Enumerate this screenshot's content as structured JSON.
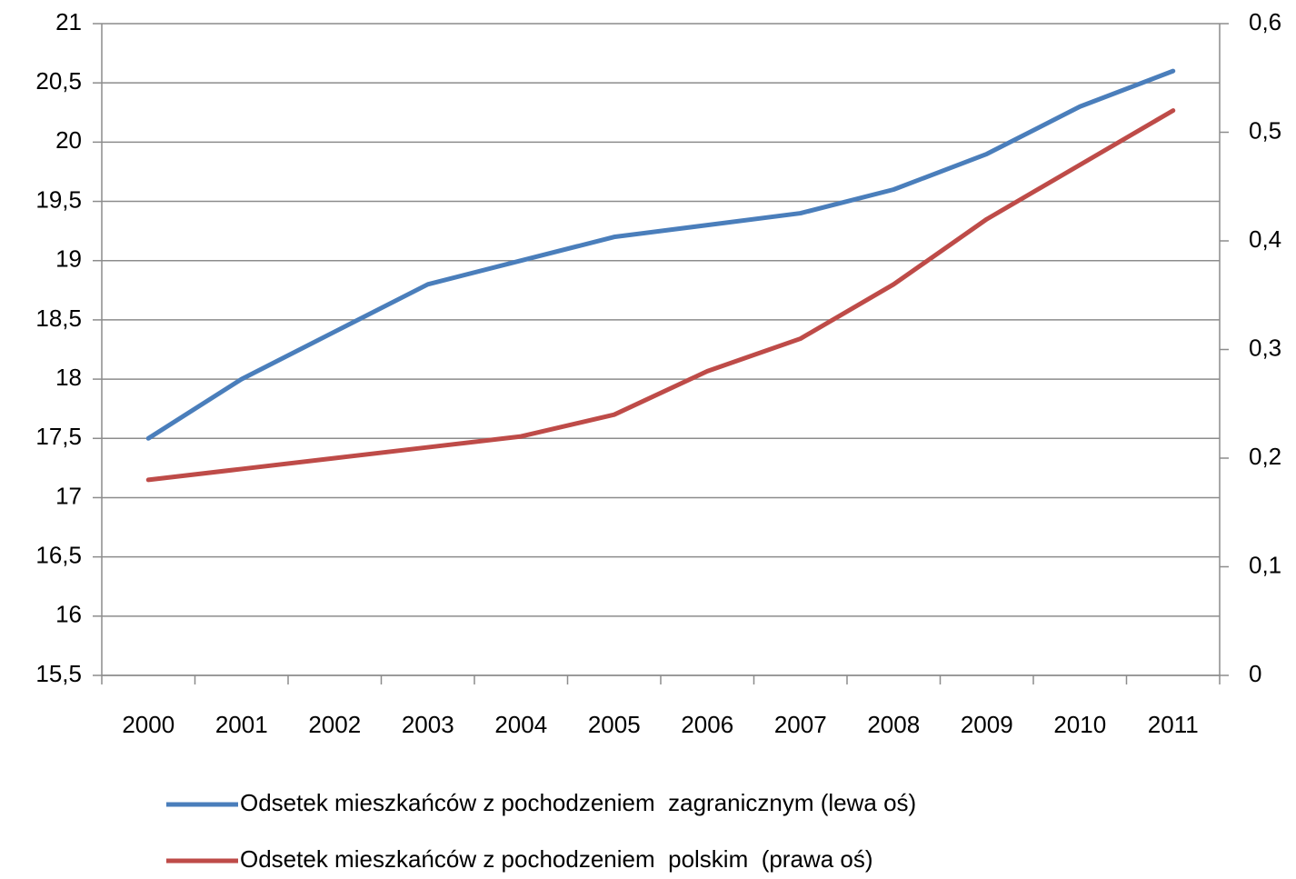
{
  "chart_data": {
    "type": "line",
    "categories": [
      "2000",
      "2001",
      "2002",
      "2003",
      "2004",
      "2005",
      "2006",
      "2007",
      "2008",
      "2009",
      "2010",
      "2011"
    ],
    "series": [
      {
        "name": "Odsetek mieszkańców z pochodzeniem  zagranicznym (lewa oś)",
        "color": "#4a7ebb",
        "values": [
          17.5,
          18.0,
          18.4,
          18.8,
          19.0,
          19.2,
          19.3,
          19.4,
          19.6,
          19.9,
          20.3,
          20.6
        ]
      },
      {
        "name": "Odsetek mieszkańców z pochodzeniem  polskim  (prawa oś)",
        "color": "#be4b48",
        "axis": "y2",
        "values": [
          0.18,
          0.19,
          0.2,
          0.21,
          0.22,
          0.24,
          0.28,
          0.31,
          0.36,
          0.42,
          0.47,
          0.52
        ]
      }
    ],
    "ylim": [
      15.5,
      21
    ],
    "yticks": [
      {
        "value": 15.5,
        "label": "15,5"
      },
      16,
      {
        "value": 16.5,
        "label": "16,5"
      },
      17,
      {
        "value": 17.5,
        "label": "17,5"
      },
      18,
      {
        "value": 18.5,
        "label": "18,5"
      },
      19,
      {
        "value": 19.5,
        "label": "19,5"
      },
      20,
      {
        "value": 20.5,
        "label": "20,5"
      },
      21
    ],
    "y2lim": [
      0,
      0.6
    ],
    "y2ticks": [
      0,
      {
        "value": 0.1,
        "label": "0,1"
      },
      {
        "value": 0.2,
        "label": "0,2"
      },
      {
        "value": 0.3,
        "label": "0,3"
      },
      {
        "value": 0.4,
        "label": "0,4"
      },
      {
        "value": 0.5,
        "label": "0,5"
      },
      {
        "value": 0.6,
        "label": "0,6"
      }
    ],
    "grid": true,
    "legend": "bottom"
  }
}
